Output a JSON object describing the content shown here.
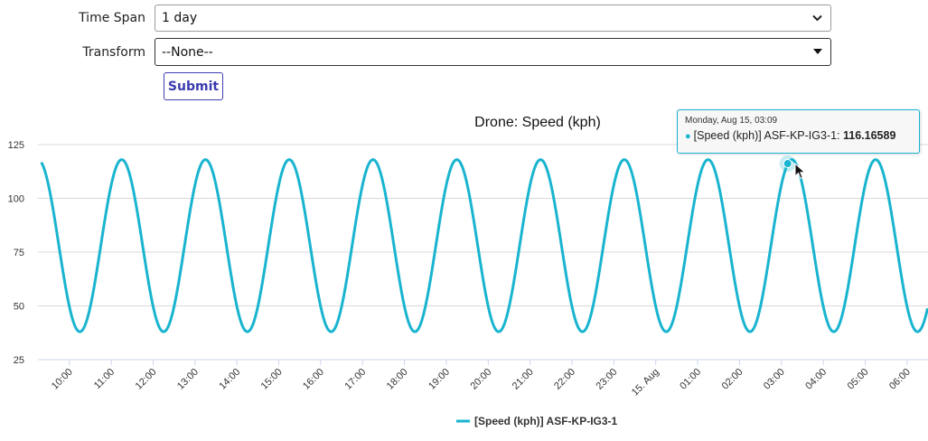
{
  "form": {
    "time_span_label": "Time Span",
    "time_span_value": "1 day",
    "transform_label": "Transform",
    "transform_value": "--None--",
    "submit_label": "Submit"
  },
  "colors": {
    "series": "#19b4cf",
    "accent": "#3b3bb0"
  },
  "tooltip": {
    "date": "Monday, Aug 15, 03:09",
    "series": "[Speed (kph)] ASF-KP-IG3-1: ",
    "value": "116.16589"
  },
  "chart_data": {
    "type": "line",
    "title": "Drone: Speed (kph)",
    "xlabel": "",
    "ylabel": "",
    "ylim": [
      25,
      125
    ],
    "yticks": [
      25,
      50,
      75,
      100,
      125
    ],
    "xlim_hours": [
      9.25,
      30.5
    ],
    "xticks": [
      {
        "hour": 10,
        "label": "10:00"
      },
      {
        "hour": 11,
        "label": "11:00"
      },
      {
        "hour": 12,
        "label": "12:00"
      },
      {
        "hour": 13,
        "label": "13:00"
      },
      {
        "hour": 14,
        "label": "14:00"
      },
      {
        "hour": 15,
        "label": "15:00"
      },
      {
        "hour": 16,
        "label": "16:00"
      },
      {
        "hour": 17,
        "label": "17:00"
      },
      {
        "hour": 18,
        "label": "18:00"
      },
      {
        "hour": 19,
        "label": "19:00"
      },
      {
        "hour": 20,
        "label": "20:00"
      },
      {
        "hour": 21,
        "label": "21:00"
      },
      {
        "hour": 22,
        "label": "22:00"
      },
      {
        "hour": 23,
        "label": "23:00"
      },
      {
        "hour": 24,
        "label": "15. Aug"
      },
      {
        "hour": 25,
        "label": "01:00"
      },
      {
        "hour": 26,
        "label": "02:00"
      },
      {
        "hour": 27,
        "label": "03:00"
      },
      {
        "hour": 28,
        "label": "04:00"
      },
      {
        "hour": 29,
        "label": "05:00"
      },
      {
        "hour": 30,
        "label": "06:00"
      }
    ],
    "grid": true,
    "legend": "bottom-center",
    "series": [
      {
        "name": "[Speed (kph)] ASF-KP-IG3-1",
        "pattern": "sinusoid",
        "min": 38,
        "max": 118,
        "period_hours": 2,
        "peak_hours": [
          11.25,
          13.25,
          15.25,
          17.25,
          19.25,
          21.25,
          23.25,
          25.25,
          27.25,
          29.25
        ],
        "trough_hours": [
          10.25,
          12.25,
          14.25,
          16.25,
          18.25,
          20.25,
          22.25,
          24.25,
          26.25,
          28.25,
          30.25
        ],
        "highlight": {
          "hour": 27.15,
          "value": 116.16589
        }
      }
    ]
  }
}
